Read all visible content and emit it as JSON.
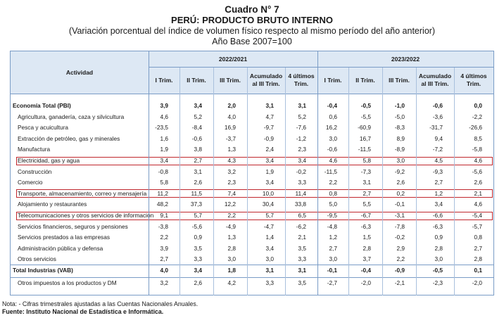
{
  "title": {
    "line1": "Cuadro N° 7",
    "line2": "PERÚ: PRODUCTO BRUTO INTERNO",
    "line3": "(Variación porcentual del índice de volumen físico respecto al mismo período del año anterior)",
    "line4": "Año Base 2007=100"
  },
  "table": {
    "activity_header": "Actividad",
    "group1": "2022/2021",
    "group2": "2023/2022",
    "cols1": [
      "I Trim.",
      "II Trim.",
      "III Trim.",
      "Acumulado al III Trim.",
      "4 últimos Trim."
    ],
    "cols2": [
      "I Trim.",
      "II Trim.",
      "III Trim.",
      "Acumulado al III Trim.",
      "4 últimos Trim."
    ],
    "rows": [
      {
        "label": "Economía Total (PBI)",
        "bold": true,
        "values": [
          "3,9",
          "3,4",
          "2,0",
          "3,1",
          "3,1",
          "-0,4",
          "-0,5",
          "-1,0",
          "-0,6",
          "0,0"
        ]
      },
      {
        "label": "Agricultura, ganadería, caza y silvicultura",
        "values": [
          "4,6",
          "5,2",
          "4,0",
          "4,7",
          "5,2",
          "0,6",
          "-5,5",
          "-5,0",
          "-3,6",
          "-2,2"
        ]
      },
      {
        "label": "Pesca y acuicultura",
        "values": [
          "-23,5",
          "-8,4",
          "16,9",
          "-9,7",
          "-7,6",
          "16,2",
          "-60,9",
          "-8,3",
          "-31,7",
          "-26,6"
        ]
      },
      {
        "label": "Extracción de petróleo, gas y minerales",
        "values": [
          "1,6",
          "-0,6",
          "-3,7",
          "-0,9",
          "-1,2",
          "3,0",
          "16,7",
          "8,9",
          "9,4",
          "8,5"
        ]
      },
      {
        "label": "Manufactura",
        "values": [
          "1,9",
          "3,8",
          "1,3",
          "2,4",
          "2,3",
          "-0,6",
          "-11,5",
          "-8,9",
          "-7,2",
          "-5,8"
        ]
      },
      {
        "label": "Electricidad, gas y agua",
        "highlight": true,
        "values": [
          "3,4",
          "2,7",
          "4,3",
          "3,4",
          "3,4",
          "4,6",
          "5,8",
          "3,0",
          "4,5",
          "4,6"
        ]
      },
      {
        "label": "Construcción",
        "values": [
          "-0,8",
          "3,1",
          "3,2",
          "1,9",
          "-0,2",
          "-11,5",
          "-7,3",
          "-9,2",
          "-9,3",
          "-5,6"
        ]
      },
      {
        "label": "Comercio",
        "values": [
          "5,8",
          "2,6",
          "2,3",
          "3,4",
          "3,3",
          "2,2",
          "3,1",
          "2,6",
          "2,7",
          "2,6"
        ]
      },
      {
        "label": "Transporte, almacenamiento, correo y mensajería",
        "highlight": true,
        "values": [
          "11,2",
          "11,5",
          "7,4",
          "10,0",
          "11,4",
          "0,8",
          "2,7",
          "0,2",
          "1,2",
          "2,1"
        ]
      },
      {
        "label": "Alojamiento y restaurantes",
        "values": [
          "48,2",
          "37,3",
          "12,2",
          "30,4",
          "33,8",
          "5,0",
          "5,5",
          "-0,1",
          "3,4",
          "4,6"
        ]
      },
      {
        "label": "Telecomunicaciones y otros servicios de información",
        "highlight": true,
        "values": [
          "9,1",
          "5,7",
          "2,2",
          "5,7",
          "6,5",
          "-9,5",
          "-6,7",
          "-3,1",
          "-6,6",
          "-5,4"
        ]
      },
      {
        "label": "Servicios financieros, seguros y pensiones",
        "values": [
          "-3,8",
          "-5,6",
          "-4,9",
          "-4,7",
          "-6,2",
          "-4,8",
          "-6,3",
          "-7,8",
          "-6,3",
          "-5,7"
        ]
      },
      {
        "label": "Servicios prestados a las empresas",
        "values": [
          "2,2",
          "0,9",
          "1,3",
          "1,4",
          "2,1",
          "1,2",
          "1,5",
          "-0,2",
          "0,9",
          "0,8"
        ]
      },
      {
        "label": "Administración pública y defensa",
        "values": [
          "3,9",
          "3,5",
          "2,8",
          "3,4",
          "3,5",
          "2,7",
          "2,8",
          "2,9",
          "2,8",
          "2,7"
        ]
      },
      {
        "label": "Otros servicios",
        "values": [
          "2,7",
          "3,3",
          "3,0",
          "3,0",
          "3,3",
          "3,0",
          "3,7",
          "2,2",
          "3,0",
          "2,8"
        ]
      },
      {
        "label": "Total Industrias (VAB)",
        "bold": true,
        "values": [
          "4,0",
          "3,4",
          "1,8",
          "3,1",
          "3,1",
          "-0,1",
          "-0,4",
          "-0,9",
          "-0,5",
          "0,1"
        ]
      },
      {
        "label": "Otros impuestos a los productos y DM",
        "values": [
          "3,2",
          "2,6",
          "4,2",
          "3,3",
          "3,5",
          "-2,7",
          "-2,0",
          "-2,1",
          "-2,3",
          "-2,0"
        ]
      }
    ]
  },
  "footer": {
    "note": "Nota: - Cifras trimestrales ajustadas a las Cuentas Nacionales Anuales.",
    "source": "Fuente: Instituto Nacional de Estadística e Informática."
  },
  "colors": {
    "header_bg": "#dde8f4",
    "border": "#7a9cc6",
    "highlight": "#c0272d"
  }
}
